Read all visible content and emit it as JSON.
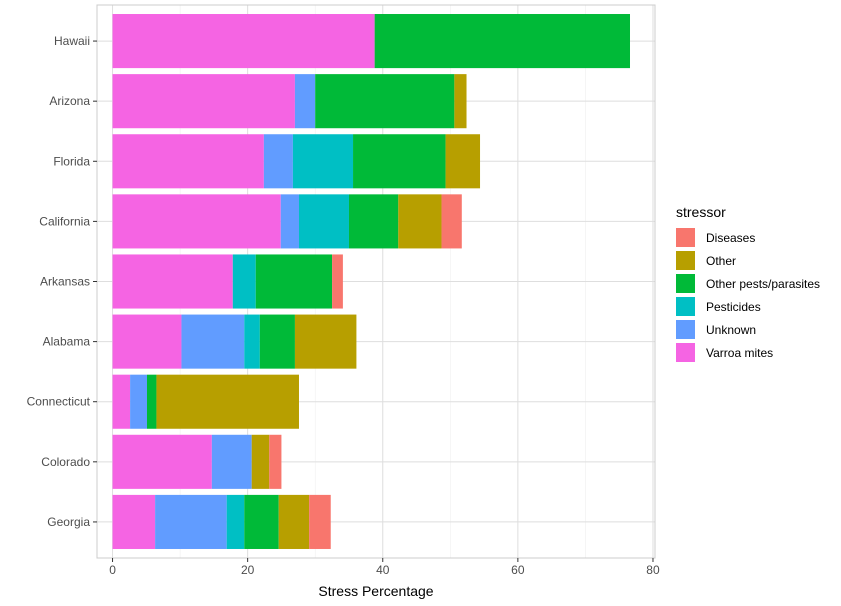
{
  "chart_data": {
    "type": "bar",
    "orientation": "horizontal",
    "stacked": true,
    "categories": [
      "Hawaii",
      "Arizona",
      "Florida",
      "California",
      "Arkansas",
      "Alabama",
      "Connecticut",
      "Colorado",
      "Georgia"
    ],
    "series": [
      {
        "name": "Varroa mites",
        "color": "#F564E3",
        "values": [
          38.8,
          27.0,
          22.4,
          24.9,
          17.8,
          10.2,
          2.6,
          14.7,
          6.3
        ]
      },
      {
        "name": "Unknown",
        "color": "#619CFF",
        "values": [
          0,
          3.0,
          4.3,
          2.7,
          0,
          9.3,
          2.5,
          5.9,
          10.6
        ]
      },
      {
        "name": "Pesticides",
        "color": "#00BFC4",
        "values": [
          0,
          0,
          8.9,
          7.4,
          3.4,
          2.3,
          0,
          0,
          2.6
        ]
      },
      {
        "name": "Other pests/parasites",
        "color": "#00BA38",
        "values": [
          37.8,
          20.6,
          13.7,
          7.3,
          11.3,
          5.2,
          1.4,
          0,
          5.1
        ]
      },
      {
        "name": "Other",
        "color": "#B79F00",
        "values": [
          0,
          1.8,
          5.1,
          6.4,
          0,
          9.1,
          21.1,
          2.6,
          4.5
        ]
      },
      {
        "name": "Diseases",
        "color": "#F8766D",
        "values": [
          0,
          0,
          0,
          3.0,
          1.6,
          0,
          0,
          1.8,
          3.2
        ]
      }
    ],
    "xlabel": "Stress Percentage",
    "ylabel": "",
    "xlim": [
      -2.3,
      80.3
    ],
    "xticks": [
      0,
      20,
      40,
      60,
      80
    ],
    "grid": true,
    "legend_title": "stressor",
    "legend_order": [
      "Diseases",
      "Other",
      "Other pests/parasites",
      "Pesticides",
      "Unknown",
      "Varroa mites"
    ],
    "legend_position": "right"
  }
}
